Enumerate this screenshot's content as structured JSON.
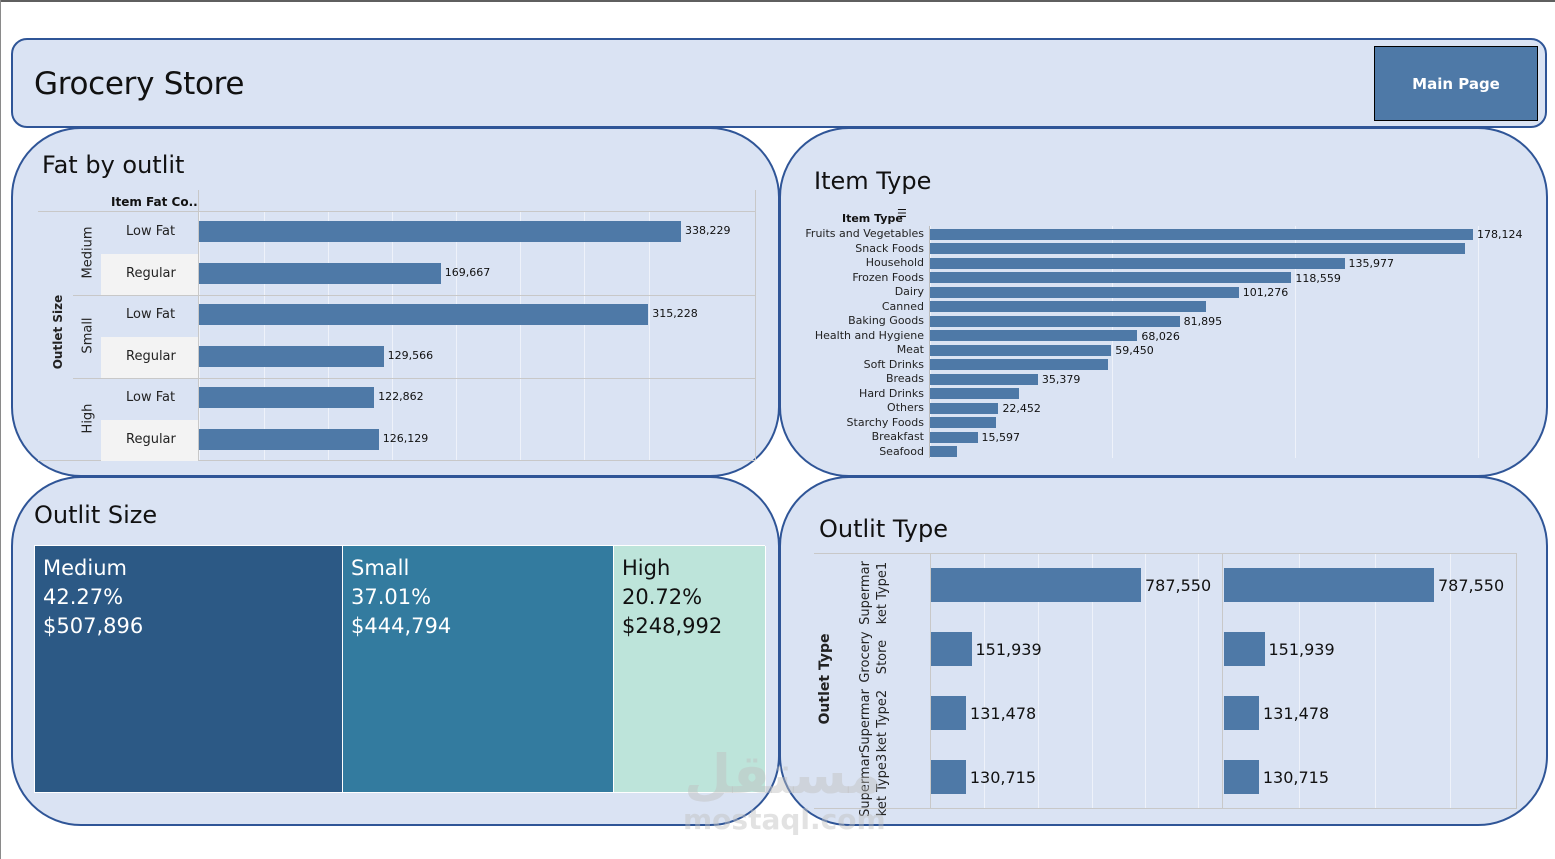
{
  "header": {
    "title": "Grocery Store",
    "main_page_button": "Main Page"
  },
  "fat_by_outlet": {
    "title": "Fat by outlit",
    "column_header": "Item Fat Co..",
    "row_axis_label": "Outlet Size",
    "groups": [
      {
        "size": "Medium",
        "rows": [
          {
            "fat": "Low Fat",
            "value": 338229,
            "label": "338,229"
          },
          {
            "fat": "Regular",
            "value": 169667,
            "label": "169,667"
          }
        ]
      },
      {
        "size": "Small",
        "rows": [
          {
            "fat": "Low Fat",
            "value": 315228,
            "label": "315,228"
          },
          {
            "fat": "Regular",
            "value": 129566,
            "label": "129,566"
          }
        ]
      },
      {
        "size": "High",
        "rows": [
          {
            "fat": "Low Fat",
            "value": 122862,
            "label": "122,862"
          },
          {
            "fat": "Regular",
            "value": 126129,
            "label": "126,129"
          }
        ]
      }
    ]
  },
  "item_type": {
    "title": "Item Type",
    "column_header": "Item Type",
    "sort_icon": "sort-descending-icon",
    "items": [
      {
        "name": "Fruits and Vegetables",
        "value": 178124,
        "label": "178,124"
      },
      {
        "name": "Snack Foods",
        "value": 175500,
        "label": ""
      },
      {
        "name": "Household",
        "value": 135977,
        "label": "135,977"
      },
      {
        "name": "Frozen Foods",
        "value": 118559,
        "label": "118,559"
      },
      {
        "name": "Dairy",
        "value": 101276,
        "label": "101,276"
      },
      {
        "name": "Canned",
        "value": 90600,
        "label": ""
      },
      {
        "name": "Baking Goods",
        "value": 81895,
        "label": "81,895"
      },
      {
        "name": "Health and Hygiene",
        "value": 68026,
        "label": "68,026"
      },
      {
        "name": "Meat",
        "value": 59450,
        "label": "59,450"
      },
      {
        "name": "Soft Drinks",
        "value": 58400,
        "label": ""
      },
      {
        "name": "Breads",
        "value": 35379,
        "label": "35,379"
      },
      {
        "name": "Hard Drinks",
        "value": 29200,
        "label": ""
      },
      {
        "name": "Others",
        "value": 22452,
        "label": "22,452"
      },
      {
        "name": "Starchy Foods",
        "value": 21700,
        "label": ""
      },
      {
        "name": "Breakfast",
        "value": 15597,
        "label": "15,597"
      },
      {
        "name": "Seafood",
        "value": 8900,
        "label": ""
      }
    ]
  },
  "outlet_size": {
    "title": "Outlit Size",
    "tiles": [
      {
        "name": "Medium",
        "percent": "42.27%",
        "sales": "$507,896",
        "share": 0.4227,
        "color": "#2c5985"
      },
      {
        "name": "Small",
        "percent": "37.01%",
        "sales": "$444,794",
        "share": 0.3701,
        "color": "#337b9f"
      },
      {
        "name": "High",
        "percent": "20.72%",
        "sales": "$248,992",
        "share": 0.2072,
        "color": "#bde4da"
      }
    ]
  },
  "outlet_type": {
    "title": "Outlit Type",
    "row_axis_label": "Outlet Type",
    "rows": [
      {
        "type_line1": "Supermar",
        "type_line2": "ket Type1",
        "value": 787550,
        "label": "787,550"
      },
      {
        "type_line1": "Grocery",
        "type_line2": "Store",
        "value": 151939,
        "label": "151,939"
      },
      {
        "type_line1": "Supermar",
        "type_line2": "ket Type2",
        "value": 131478,
        "label": "131,478"
      },
      {
        "type_line1": "Supermar",
        "type_line2": "ket Type3",
        "value": 130715,
        "label": "130,715"
      }
    ]
  },
  "chart_data": [
    {
      "type": "bar",
      "title": "Fat by outlit",
      "orientation": "horizontal",
      "categories": [
        "Medium / Low Fat",
        "Medium / Regular",
        "Small / Low Fat",
        "Small / Regular",
        "High / Low Fat",
        "High / Regular"
      ],
      "values": [
        338229,
        169667,
        315228,
        129566,
        122862,
        126129
      ],
      "xlabel": "",
      "ylabel": "Outlet Size / Item Fat Content"
    },
    {
      "type": "bar",
      "title": "Item Type",
      "orientation": "horizontal",
      "categories": [
        "Fruits and Vegetables",
        "Snack Foods",
        "Household",
        "Frozen Foods",
        "Dairy",
        "Canned",
        "Baking Goods",
        "Health and Hygiene",
        "Meat",
        "Soft Drinks",
        "Breads",
        "Hard Drinks",
        "Others",
        "Starchy Foods",
        "Breakfast",
        "Seafood"
      ],
      "values": [
        178124,
        175500,
        135977,
        118559,
        101276,
        90600,
        81895,
        68026,
        59450,
        58400,
        35379,
        29200,
        22452,
        21700,
        15597,
        8900
      ],
      "ylabel": "Item Type"
    },
    {
      "type": "heatmap",
      "subtype": "treemap",
      "title": "Outlit Size",
      "categories": [
        "Medium",
        "Small",
        "High"
      ],
      "values": [
        507896,
        444794,
        248992
      ],
      "percents": [
        42.27,
        37.01,
        20.72
      ]
    },
    {
      "type": "bar",
      "title": "Outlit Type",
      "orientation": "horizontal",
      "categories": [
        "Supermarket Type1",
        "Grocery Store",
        "Supermarket Type2",
        "Supermarket Type3"
      ],
      "series": [
        {
          "name": "panel 1",
          "values": [
            787550,
            151939,
            131478,
            130715
          ]
        },
        {
          "name": "panel 2",
          "values": [
            787550,
            151939,
            131478,
            130715
          ]
        }
      ],
      "ylabel": "Outlet Type"
    }
  ]
}
